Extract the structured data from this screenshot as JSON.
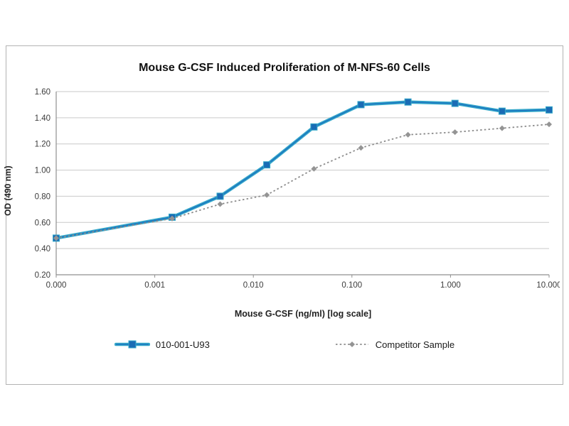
{
  "chart_data": {
    "type": "line",
    "title": "Mouse G-CSF Induced Proliferation of M-NFS-60 Cells",
    "xlabel": "Mouse G-CSF (ng/ml) [log scale]",
    "ylabel": "OD (490 nm)",
    "x_scale": "log",
    "x_tick_labels": [
      "0.000",
      "0.001",
      "0.010",
      "0.100",
      "1.000",
      "10.000"
    ],
    "ylim": [
      0.2,
      1.6
    ],
    "y_tick_step": 0.2,
    "grid": true,
    "grid_color": "#c9c9c9",
    "axis_color": "#8f8f8f",
    "legend_position": "bottom",
    "x": [
      0,
      0.0015,
      0.0046,
      0.0137,
      0.0412,
      0.1235,
      0.3704,
      1.1111,
      3.3333,
      10
    ],
    "series": [
      {
        "name": "010-001-U93",
        "values": [
          0.48,
          0.64,
          0.8,
          1.04,
          1.33,
          1.5,
          1.52,
          1.51,
          1.45,
          1.46
        ],
        "style": "solid-thick",
        "marker": "square",
        "line_color": "#35a8c9",
        "core_color": "#1b74c0",
        "marker_color": "#1a6cb5"
      },
      {
        "name": "Competitor Sample",
        "values": [
          0.48,
          0.63,
          0.74,
          0.81,
          1.01,
          1.17,
          1.27,
          1.29,
          1.32,
          1.35
        ],
        "style": "dotted",
        "marker": "diamond",
        "line_color": "#8c8c8c",
        "marker_color": "#949494"
      }
    ]
  }
}
